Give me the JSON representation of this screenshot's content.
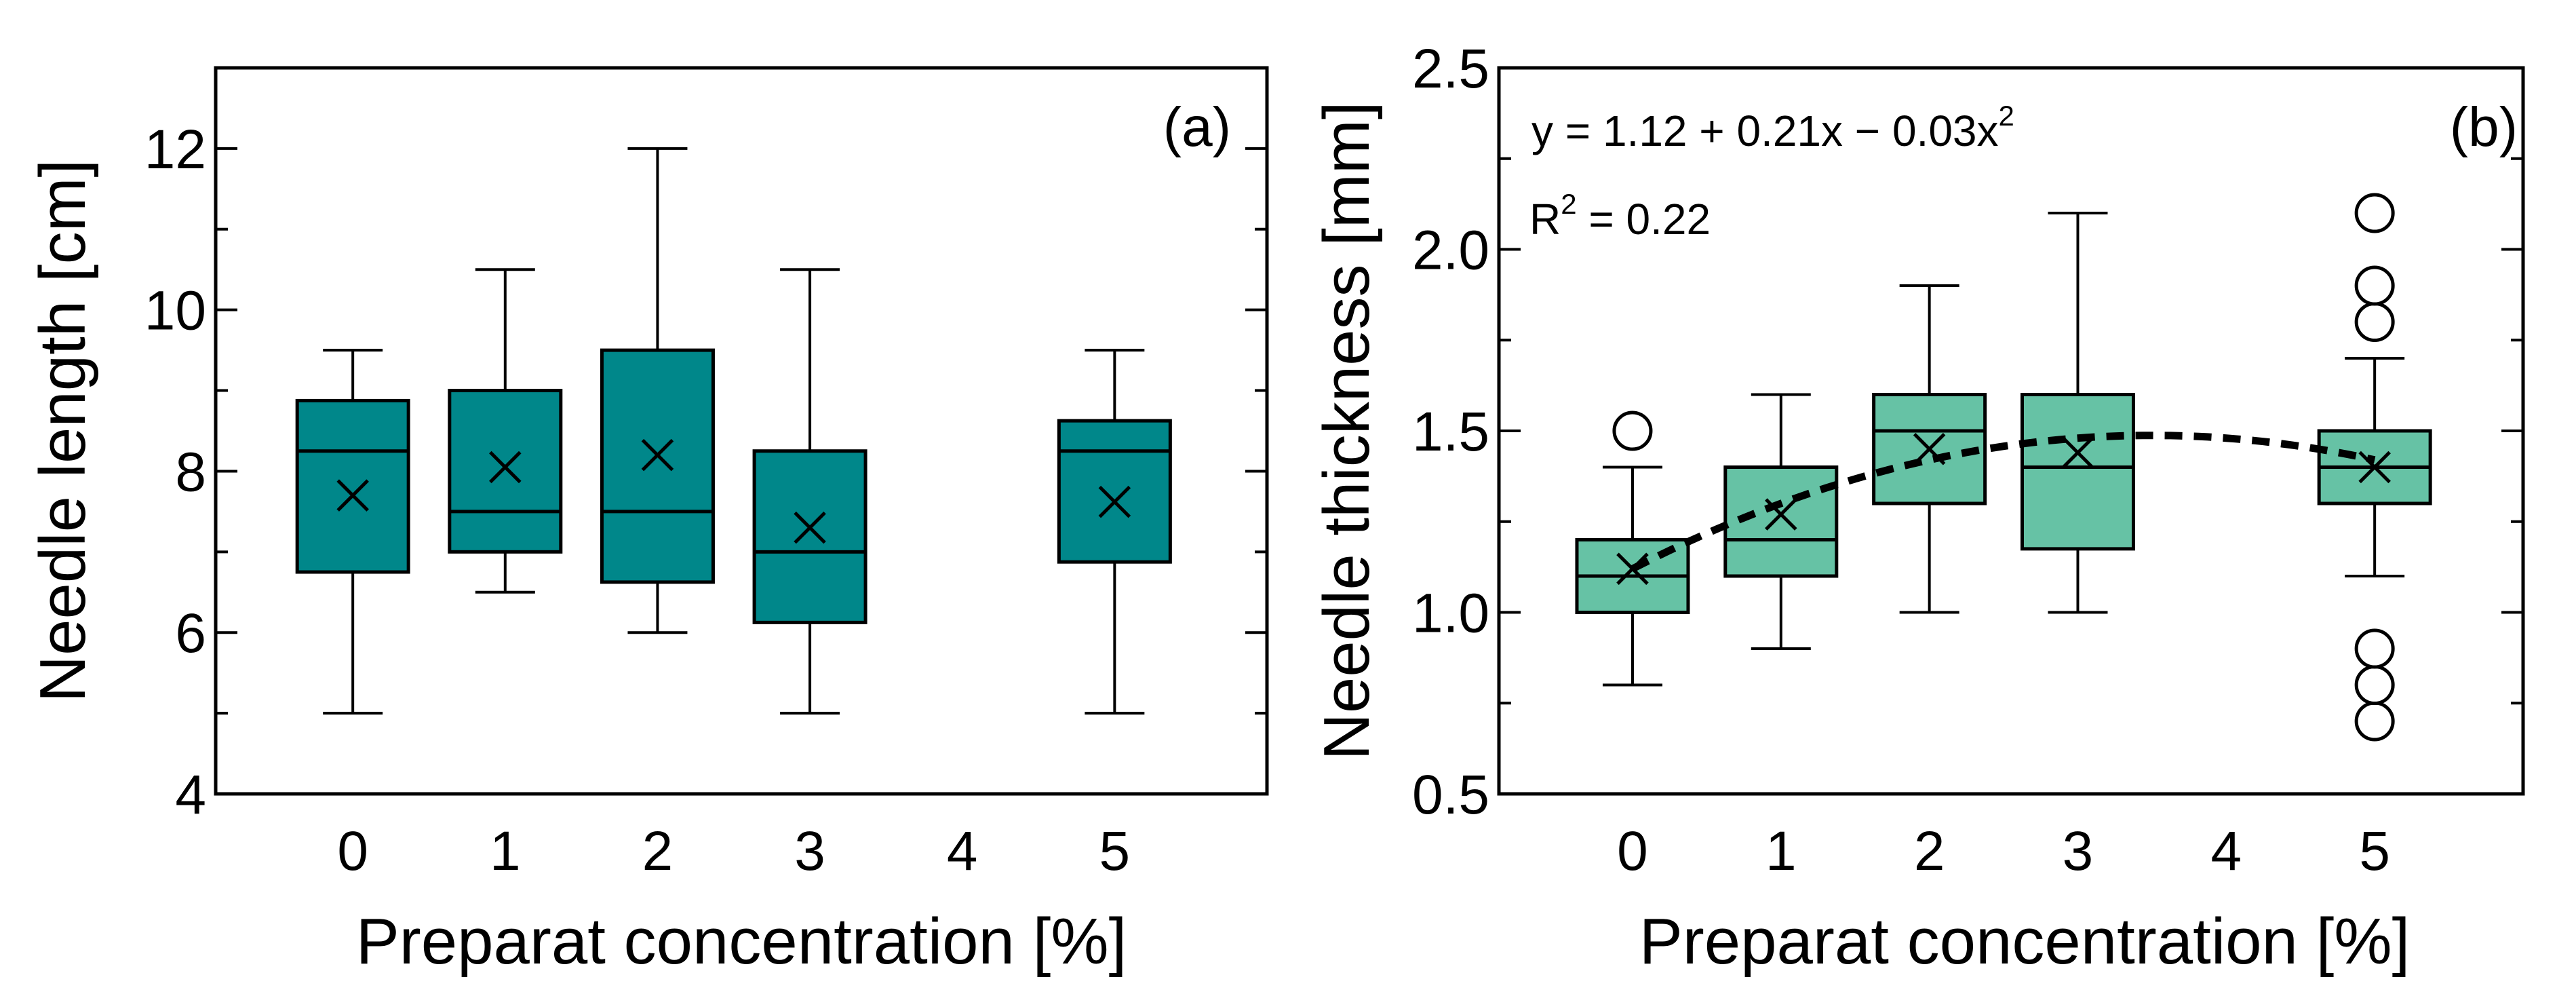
{
  "chart_data": [
    {
      "type": "box",
      "panel_label": "(a)",
      "xlabel": "Preparat concentration [%]",
      "ylabel": "Needle length [cm]",
      "xlim": [
        -0.9,
        6.0
      ],
      "ylim": [
        4,
        13
      ],
      "x_ticks": [
        0,
        1,
        2,
        3,
        4,
        5
      ],
      "y_ticks": [
        4,
        6,
        8,
        10,
        12
      ],
      "box_color": "#00878a",
      "boxes": [
        {
          "x": 0,
          "min": 5.0,
          "q1": 6.75,
          "median": 8.25,
          "q3": 8.875,
          "max": 9.5,
          "mean": 7.7,
          "outliers": []
        },
        {
          "x": 1,
          "min": 6.5,
          "q1": 7.0,
          "median": 7.5,
          "q3": 9.0,
          "max": 10.5,
          "mean": 8.05,
          "outliers": []
        },
        {
          "x": 2,
          "min": 6.0,
          "q1": 6.625,
          "median": 7.5,
          "q3": 9.5,
          "max": 12.0,
          "mean": 8.2,
          "outliers": []
        },
        {
          "x": 3,
          "min": 5.0,
          "q1": 6.125,
          "median": 7.0,
          "q3": 8.25,
          "max": 10.5,
          "mean": 7.3,
          "outliers": []
        },
        {
          "x": 5,
          "min": 5.0,
          "q1": 6.875,
          "median": 8.25,
          "q3": 8.625,
          "max": 9.5,
          "mean": 7.62,
          "outliers": []
        }
      ]
    },
    {
      "type": "box",
      "panel_label": "(b)",
      "xlabel": "Preparat concentration [%]",
      "ylabel": "Needle thickness [mm]",
      "xlim": [
        -0.9,
        6.0
      ],
      "ylim": [
        0.5,
        2.5
      ],
      "x_ticks": [
        0,
        1,
        2,
        3,
        4,
        5
      ],
      "y_ticks": [
        "0.5",
        "1.0",
        "1.5",
        "2.0",
        "2.5"
      ],
      "box_color": "#66c2a5",
      "boxes": [
        {
          "x": 0,
          "min": 0.8,
          "q1": 1.0,
          "median": 1.1,
          "q3": 1.2,
          "max": 1.4,
          "mean": 1.12,
          "outliers": [
            1.5
          ]
        },
        {
          "x": 1,
          "min": 0.9,
          "q1": 1.1,
          "median": 1.2,
          "q3": 1.4,
          "max": 1.6,
          "mean": 1.27,
          "outliers": []
        },
        {
          "x": 2,
          "min": 1.0,
          "q1": 1.3,
          "median": 1.5,
          "q3": 1.6,
          "max": 1.9,
          "mean": 1.45,
          "outliers": []
        },
        {
          "x": 3,
          "min": 1.0,
          "q1": 1.175,
          "median": 1.4,
          "q3": 1.6,
          "max": 2.1,
          "mean": 1.44,
          "outliers": []
        },
        {
          "x": 5,
          "min": 1.1,
          "q1": 1.3,
          "median": 1.4,
          "q3": 1.5,
          "max": 1.7,
          "mean": 1.4,
          "outliers": [
            0.7,
            0.8,
            0.9,
            1.8,
            1.9,
            2.1
          ]
        }
      ],
      "fit": {
        "coefficients": [
          1.12,
          0.21,
          -0.03
        ],
        "x_range": [
          0,
          5
        ],
        "equation_prefix": "y = 1.12 + 0.21x − 0.03x",
        "equation_exponent": "2",
        "r2_label": "R",
        "r2_exponent": "2",
        "r2_value": " = 0.22"
      }
    }
  ]
}
